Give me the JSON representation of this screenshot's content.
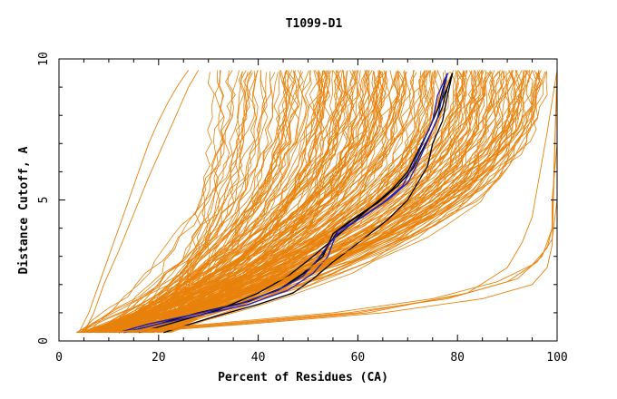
{
  "chart_data": {
    "type": "line",
    "title": "T1099-D1",
    "xlabel": "Percent of Residues (CA)",
    "ylabel": "Distance Cutoff, A",
    "xlim": [
      0,
      100
    ],
    "ylim": [
      0,
      10
    ],
    "x_ticks": [
      "0",
      "20",
      "40",
      "60",
      "80",
      "100"
    ],
    "y_ticks": [
      "0",
      "5",
      "10"
    ],
    "grid": false,
    "legend": "none",
    "colors": {
      "group_curves": "#e8820c",
      "black_models": "#000000",
      "blue_models": "#2020c0",
      "frame": "#000000"
    },
    "series": [
      {
        "group": "black",
        "x": [
          12,
          18,
          26,
          36,
          44,
          49,
          53,
          55,
          58,
          63,
          67,
          70,
          72,
          74,
          76,
          77,
          78
        ],
        "y": [
          0.3,
          0.6,
          0.9,
          1.3,
          1.8,
          2.4,
          3.0,
          3.8,
          4.2,
          4.8,
          5.4,
          6.0,
          6.7,
          7.4,
          8.2,
          8.9,
          9.5
        ]
      },
      {
        "group": "black",
        "x": [
          13,
          20,
          28,
          38,
          45,
          50,
          53,
          56,
          59,
          64,
          68,
          71,
          73,
          75,
          77,
          78,
          79
        ],
        "y": [
          0.3,
          0.6,
          1.0,
          1.4,
          1.9,
          2.5,
          3.1,
          3.9,
          4.3,
          4.9,
          5.5,
          6.1,
          6.8,
          7.5,
          8.3,
          9.0,
          9.5
        ]
      },
      {
        "group": "black",
        "x": [
          16,
          24,
          32,
          40,
          46,
          51,
          55,
          59,
          63,
          67,
          70,
          72,
          74,
          76,
          78,
          79
        ],
        "y": [
          0.3,
          0.7,
          1.1,
          1.7,
          2.3,
          3.0,
          3.6,
          4.2,
          4.8,
          5.4,
          6.0,
          6.7,
          7.4,
          8.2,
          9.0,
          9.5
        ]
      },
      {
        "group": "black",
        "x": [
          21,
          30,
          40,
          47,
          51,
          55,
          61,
          66,
          70,
          72,
          74,
          75,
          77,
          78,
          79
        ],
        "y": [
          0.3,
          0.8,
          1.3,
          1.7,
          2.2,
          2.8,
          3.6,
          4.3,
          5.0,
          5.6,
          6.2,
          7.0,
          7.8,
          8.7,
          9.5
        ]
      },
      {
        "group": "blue",
        "x": [
          12,
          18,
          26,
          36,
          44,
          49,
          52,
          54,
          56,
          60,
          65,
          69,
          71,
          73,
          75,
          76,
          78
        ],
        "y": [
          0.3,
          0.6,
          0.9,
          1.3,
          1.8,
          2.3,
          2.9,
          3.4,
          3.8,
          4.3,
          4.9,
          5.5,
          6.2,
          7.0,
          7.8,
          8.7,
          9.5
        ]
      },
      {
        "group": "blue",
        "x": [
          13,
          20,
          28,
          38,
          46,
          51,
          54,
          55,
          56,
          61,
          66,
          70,
          72,
          74,
          76,
          77,
          78
        ],
        "y": [
          0.3,
          0.6,
          0.9,
          1.3,
          1.8,
          2.4,
          3.0,
          3.5,
          3.9,
          4.4,
          5.0,
          5.6,
          6.3,
          7.1,
          7.9,
          8.7,
          9.5
        ]
      },
      {
        "group": "orange-outlier",
        "x": [
          10,
          30,
          55,
          75,
          88,
          95,
          98,
          99,
          99,
          100,
          100
        ],
        "y": [
          0.3,
          0.6,
          1.0,
          1.5,
          2.1,
          2.7,
          3.3,
          4.0,
          5.0,
          7.0,
          9.6
        ]
      },
      {
        "group": "orange-outlier",
        "x": [
          11,
          32,
          58,
          78,
          90,
          96,
          99,
          100,
          100
        ],
        "y": [
          0.3,
          0.6,
          1.0,
          1.5,
          2.1,
          2.8,
          3.6,
          5.0,
          9.6
        ]
      },
      {
        "group": "orange-outlier",
        "x": [
          12,
          34,
          60,
          80,
          92,
          97,
          99,
          100
        ],
        "y": [
          0.3,
          0.6,
          1.0,
          1.6,
          2.2,
          3.0,
          4.0,
          9.6
        ]
      },
      {
        "group": "orange-outlier",
        "x": [
          14,
          36,
          62,
          82,
          90,
          93,
          95,
          96,
          97,
          98,
          100
        ],
        "y": [
          0.3,
          0.6,
          1.0,
          1.7,
          2.6,
          3.5,
          4.4,
          5.4,
          6.4,
          7.4,
          9.6
        ]
      },
      {
        "group": "orange-outlier",
        "x": [
          15,
          38,
          65,
          85,
          95,
          98,
          99,
          100
        ],
        "y": [
          0.3,
          0.6,
          1.0,
          1.5,
          2.0,
          2.6,
          3.4,
          9.6
        ]
      },
      {
        "group": "orange-edge",
        "x": [
          4,
          6,
          8,
          10,
          12,
          14,
          16,
          18,
          20,
          22,
          24,
          26
        ],
        "y": [
          0.3,
          1.0,
          2.0,
          3.0,
          4.0,
          5.0,
          6.0,
          7.0,
          7.8,
          8.5,
          9.1,
          9.6
        ]
      },
      {
        "group": "orange-edge",
        "x": [
          5,
          7,
          9,
          12,
          15,
          18,
          21,
          24,
          26,
          28
        ],
        "y": [
          0.3,
          1.0,
          2.0,
          3.2,
          4.5,
          5.8,
          7.0,
          8.2,
          9.0,
          9.6
        ]
      },
      {
        "group": "orange-edge",
        "x": [
          8,
          20,
          32,
          42,
          52,
          62,
          72,
          80,
          86,
          90,
          93,
          95
        ],
        "y": [
          0.3,
          0.8,
          1.4,
          2.0,
          2.7,
          3.5,
          4.4,
          5.4,
          6.5,
          7.6,
          8.6,
          9.6
        ]
      },
      {
        "group": "orange-edge",
        "x": [
          10,
          22,
          34,
          45,
          55,
          64,
          72,
          79,
          84,
          88,
          91
        ],
        "y": [
          0.3,
          0.9,
          1.5,
          2.2,
          3.0,
          3.9,
          4.9,
          6.0,
          7.2,
          8.4,
          9.6
        ]
      }
    ]
  }
}
